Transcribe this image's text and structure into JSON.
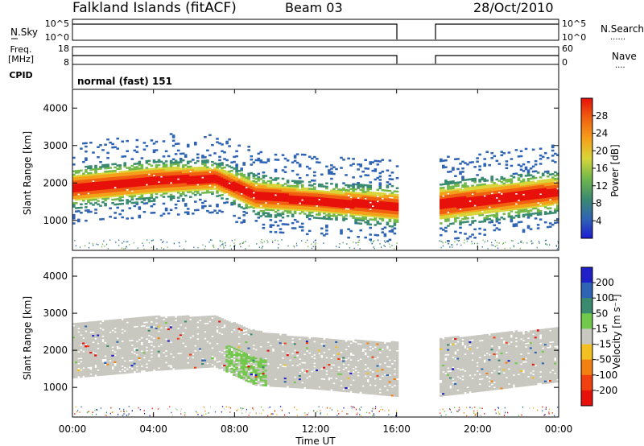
{
  "header": {
    "site": "Falkland Islands (fitACF)",
    "beam": "Beam 03",
    "date": "28/Oct/2010"
  },
  "status_panels": {
    "nsky_label": "N.Sky",
    "nsky_ticks": [
      "10^5",
      "10^0"
    ],
    "nsearch_label": "N.Search",
    "freq_label_1": "Freq.",
    "freq_label_2": "[MHz]",
    "freq_ticks": [
      "18",
      "8"
    ],
    "nave_label": "Nave",
    "nave_ticks": [
      "60",
      "0"
    ],
    "cpid_label": "CPID",
    "cpid_value": "normal (fast) 151"
  },
  "chart_data": [
    {
      "type": "heatmap",
      "name": "power",
      "ylabel": "Slant Range [km]",
      "xlabel": "",
      "xlim": [
        "00:00",
        "24:00"
      ],
      "ylim": [
        200,
        4500
      ],
      "yticks": [
        1000,
        2000,
        3000,
        4000
      ],
      "colorbar": {
        "label": "Power [dB]",
        "ticks": [
          4,
          8,
          12,
          16,
          20,
          24,
          28
        ],
        "colors": [
          "#1d1bd3",
          "#2f64b4",
          "#3a8a70",
          "#72b84a",
          "#d8d63a",
          "#f5a01a",
          "#f06010",
          "#e8100a"
        ]
      },
      "data_gap_hours": [
        16.0,
        18.0
      ],
      "echo_bands": [
        {
          "t": 0.0,
          "range_low": 1500,
          "range_high": 2200,
          "peak_power_db": 28
        },
        {
          "t": 4.0,
          "range_low": 1700,
          "range_high": 2400,
          "peak_power_db": 28
        },
        {
          "t": 7.0,
          "range_low": 1800,
          "range_high": 2400,
          "peak_power_db": 28
        },
        {
          "t": 9.0,
          "range_low": 1300,
          "range_high": 2000,
          "peak_power_db": 28
        },
        {
          "t": 12.0,
          "range_low": 1200,
          "range_high": 1800,
          "peak_power_db": 28
        },
        {
          "t": 16.0,
          "range_low": 1000,
          "range_high": 1700,
          "peak_power_db": 24
        },
        {
          "t": 18.0,
          "range_low": 1000,
          "range_high": 1800,
          "peak_power_db": 24
        },
        {
          "t": 24.0,
          "range_low": 1400,
          "range_high": 2100,
          "peak_power_db": 28
        }
      ]
    },
    {
      "type": "heatmap",
      "name": "velocity",
      "ylabel": "Slant Range [km]",
      "xlabel": "Time UT",
      "xlim": [
        "00:00",
        "24:00"
      ],
      "ylim": [
        200,
        4500
      ],
      "yticks": [
        1000,
        2000,
        3000,
        4000
      ],
      "xticks": [
        "00:00",
        "04:00",
        "08:00",
        "12:00",
        "16:00",
        "20:00",
        "00:00"
      ],
      "colorbar": {
        "label": "Velocity [m s⁻¹]",
        "ticks": [
          200,
          100,
          50,
          15,
          -15,
          -50,
          -100,
          -200
        ],
        "colors": [
          "#2020c8",
          "#2f64b4",
          "#3a8a70",
          "#72c84a",
          "#c8c8c0",
          "#f2c020",
          "#f28010",
          "#f04010",
          "#e8100a"
        ]
      },
      "data_gap_hours": [
        16.0,
        18.0
      ],
      "ground_scatter_color": "#c8c8c0"
    }
  ]
}
